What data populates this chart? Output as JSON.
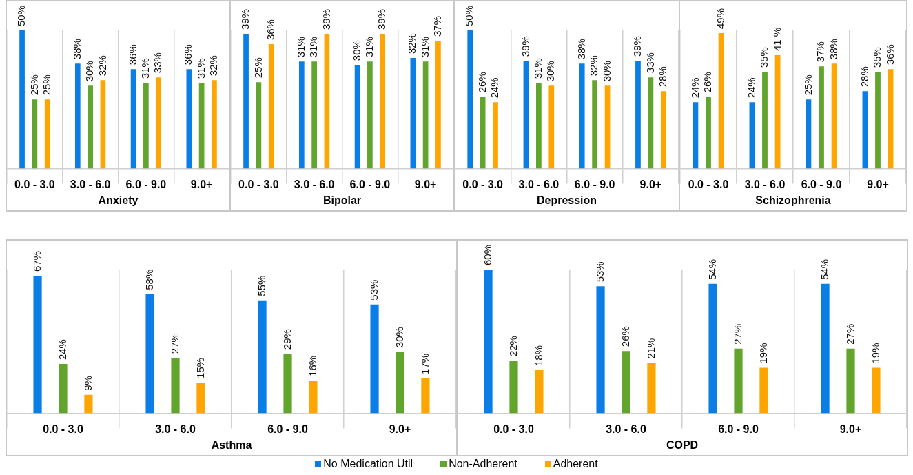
{
  "chart_data": [
    {
      "type": "bar",
      "xlabel": "Anxiety",
      "categories": [
        "0.0 - 3.0",
        "3.0 - 6.0",
        "6.0 - 9.0",
        "9.0+"
      ],
      "grid": "x",
      "legend": false,
      "series": [
        {
          "color": "#0a7ee4",
          "values": [
            50,
            38,
            36,
            36
          ],
          "value_labels": [
            "50%",
            "38%",
            "36%",
            "36%"
          ]
        },
        {
          "color": "#62a52c",
          "values": [
            25,
            30,
            31,
            31
          ],
          "value_labels": [
            "25%",
            "30%",
            "31%",
            "31%"
          ]
        },
        {
          "color": "#fea502",
          "values": [
            25,
            32,
            33,
            32
          ],
          "value_labels": [
            "25%",
            "32%",
            "33%",
            "32%"
          ]
        }
      ]
    },
    {
      "type": "bar",
      "xlabel": "Bipolar",
      "categories": [
        "0.0 - 3.0",
        "3.0 - 6.0",
        "6.0 - 9.0",
        "9.0+"
      ],
      "grid": "x",
      "legend": false,
      "series": [
        {
          "color": "#0a7ee4",
          "values": [
            39,
            31,
            30,
            32
          ],
          "value_labels": [
            "39%",
            "31%",
            "30%",
            "32%"
          ]
        },
        {
          "color": "#62a52c",
          "values": [
            25,
            31,
            31,
            31
          ],
          "value_labels": [
            "25%",
            "31%",
            "31%",
            "31%"
          ]
        },
        {
          "color": "#fea502",
          "values": [
            36,
            39,
            39,
            37
          ],
          "value_labels": [
            "36%",
            "39%",
            "39%",
            "37%"
          ]
        }
      ]
    },
    {
      "type": "bar",
      "xlabel": "Depression",
      "categories": [
        "0.0 - 3.0",
        "3.0 - 6.0",
        "6.0 - 9.0",
        "9.0+"
      ],
      "grid": "x",
      "legend": false,
      "series": [
        {
          "color": "#0a7ee4",
          "values": [
            50,
            39,
            38,
            39
          ],
          "value_labels": [
            "50%",
            "39%",
            "38%",
            "39%"
          ]
        },
        {
          "color": "#62a52c",
          "values": [
            26,
            31,
            32,
            33
          ],
          "value_labels": [
            "26%",
            "31%",
            "32%",
            "33%"
          ]
        },
        {
          "color": "#fea502",
          "values": [
            24,
            30,
            30,
            28
          ],
          "value_labels": [
            "24%",
            "30%",
            "30%",
            "28%"
          ]
        }
      ]
    },
    {
      "type": "bar",
      "xlabel": "Schizophrenia",
      "categories": [
        "0.0 - 3.0",
        "3.0 - 6.0",
        "6.0 - 9.0",
        "9.0+"
      ],
      "grid": "x",
      "legend": false,
      "series": [
        {
          "color": "#0a7ee4",
          "values": [
            24,
            24,
            25,
            28
          ],
          "value_labels": [
            "24%",
            "24%",
            "25%",
            "28%"
          ]
        },
        {
          "color": "#62a52c",
          "values": [
            26,
            35,
            37,
            35
          ],
          "value_labels": [
            "26%",
            "35%",
            "37%",
            "35%"
          ]
        },
        {
          "color": "#fea502",
          "values": [
            49,
            41,
            38,
            36
          ],
          "value_labels": [
            "49%",
            "41 %",
            "38%",
            "36%"
          ]
        }
      ]
    },
    {
      "type": "bar",
      "xlabel": "Asthma",
      "categories": [
        "0.0 - 3.0",
        "3.0 - 6.0",
        "6.0 - 9.0",
        "9.0+"
      ],
      "grid": "x",
      "legend": false,
      "series": [
        {
          "color": "#0a7ee4",
          "values": [
            67,
            58,
            55,
            53
          ],
          "value_labels": [
            "67%",
            "58%",
            "55%",
            "53%"
          ]
        },
        {
          "color": "#62a52c",
          "values": [
            24,
            27,
            29,
            30
          ],
          "value_labels": [
            "24%",
            "27%",
            "29%",
            "30%"
          ]
        },
        {
          "color": "#fea502",
          "values": [
            9,
            15,
            16,
            17
          ],
          "value_labels": [
            "9%",
            "15%",
            "16%",
            "17%"
          ]
        }
      ]
    },
    {
      "type": "bar",
      "xlabel": "COPD",
      "categories": [
        "0.0 - 3.0",
        "3.0 - 6.0",
        "6.0 - 9.0",
        "9.0+"
      ],
      "grid": "x",
      "legend": "bottom",
      "series": [
        {
          "name": "No Medication Util",
          "color": "#0a7ee4",
          "values": [
            60,
            53,
            54,
            54
          ],
          "value_labels": [
            "60%",
            "53%",
            "54%",
            "54%"
          ]
        },
        {
          "name": "Non-Adherent",
          "color": "#62a52c",
          "values": [
            22,
            26,
            27,
            27
          ],
          "value_labels": [
            "22%",
            "26%",
            "27%",
            "27%"
          ]
        },
        {
          "name": "Adherent",
          "color": "#fea502",
          "values": [
            18,
            21,
            19,
            19
          ],
          "value_labels": [
            "18%",
            "21%",
            "19%",
            "19%"
          ]
        }
      ]
    }
  ]
}
